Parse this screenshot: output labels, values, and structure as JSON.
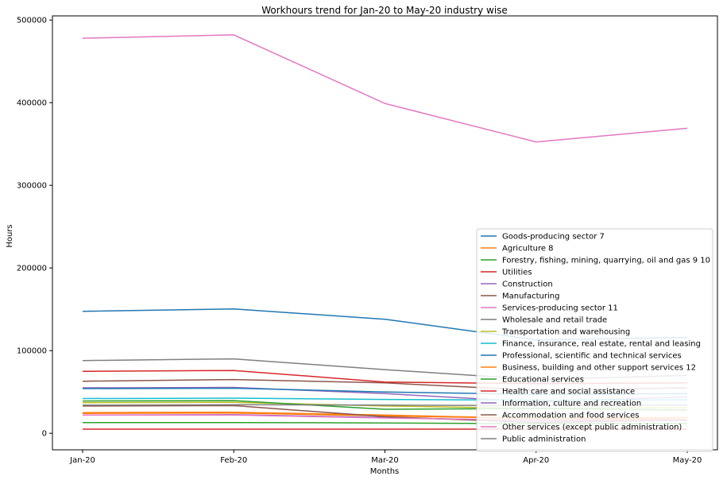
{
  "chart_data": {
    "type": "line",
    "title": "Workhours trend for Jan-20 to May-20 industry wise",
    "xlabel": "Months",
    "ylabel": "Hours",
    "categories": [
      "Jan-20",
      "Feb-20",
      "Mar-20",
      "Apr-20",
      "May-20"
    ],
    "ylim": [
      -20000,
      505000
    ],
    "yticks": [
      0,
      100000,
      200000,
      300000,
      400000,
      500000
    ],
    "grid": false,
    "legend_position": "lower-right",
    "series": [
      {
        "name": "Goods-producing sector 7",
        "color": "#1f77b4",
        "values": [
          147500,
          150500,
          138000,
          113000,
          116000
        ]
      },
      {
        "name": "Agriculture 8",
        "color": "#ff7f0e",
        "values": [
          24000,
          24500,
          21000,
          18000,
          17000
        ]
      },
      {
        "name": "Forestry, fishing, mining, quarrying, oil and gas 9 10",
        "color": "#2ca02c",
        "values": [
          13000,
          13000,
          12500,
          11500,
          12000
        ]
      },
      {
        "name": "Utilities",
        "color": "#d62728",
        "values": [
          5000,
          5000,
          5000,
          5000,
          5000
        ]
      },
      {
        "name": "Construction",
        "color": "#9467bd",
        "values": [
          55000,
          55500,
          48000,
          38000,
          44000
        ]
      },
      {
        "name": "Manufacturing",
        "color": "#8c564b",
        "values": [
          63000,
          65000,
          61000,
          52000,
          55000
        ]
      },
      {
        "name": "Services-producing sector 11",
        "color": "#e377c2",
        "values": [
          478000,
          482000,
          399000,
          352500,
          369000
        ]
      },
      {
        "name": "Wholesale and retail trade",
        "color": "#7f7f7f",
        "values": [
          88000,
          90000,
          77000,
          65000,
          70000
        ]
      },
      {
        "name": "Transportation and warehousing",
        "color": "#bcbd22",
        "values": [
          37000,
          37500,
          33000,
          30000,
          31000
        ]
      },
      {
        "name": "Finance, insurance, real estate, rental and leasing",
        "color": "#17becf",
        "values": [
          42000,
          42500,
          41000,
          40000,
          40500
        ]
      },
      {
        "name": "Professional, scientific and technical services",
        "color": "#1f77b4",
        "values": [
          54000,
          54500,
          50000,
          47000,
          48000
        ]
      },
      {
        "name": "Business, building and other support services 12",
        "color": "#ff7f0e",
        "values": [
          25000,
          25500,
          22000,
          18000,
          19000
        ]
      },
      {
        "name": "Educational services",
        "color": "#2ca02c",
        "values": [
          39000,
          39500,
          29000,
          30000,
          28000
        ]
      },
      {
        "name": "Health care and social assistance",
        "color": "#d62728",
        "values": [
          75000,
          76000,
          62000,
          60000,
          61000
        ]
      },
      {
        "name": "Information, culture and recreation",
        "color": "#9467bd",
        "values": [
          22000,
          22500,
          19000,
          15000,
          15500
        ]
      },
      {
        "name": "Accommodation and food services",
        "color": "#8c564b",
        "values": [
          33000,
          33500,
          20000,
          13000,
          16000
        ]
      },
      {
        "name": "Other services (except public administration)",
        "color": "#e377c2",
        "values": [
          22000,
          22000,
          18500,
          16000,
          16500
        ]
      },
      {
        "name": "Public administration",
        "color": "#7f7f7f",
        "values": [
          34000,
          34500,
          34000,
          33500,
          34000
        ]
      }
    ]
  }
}
